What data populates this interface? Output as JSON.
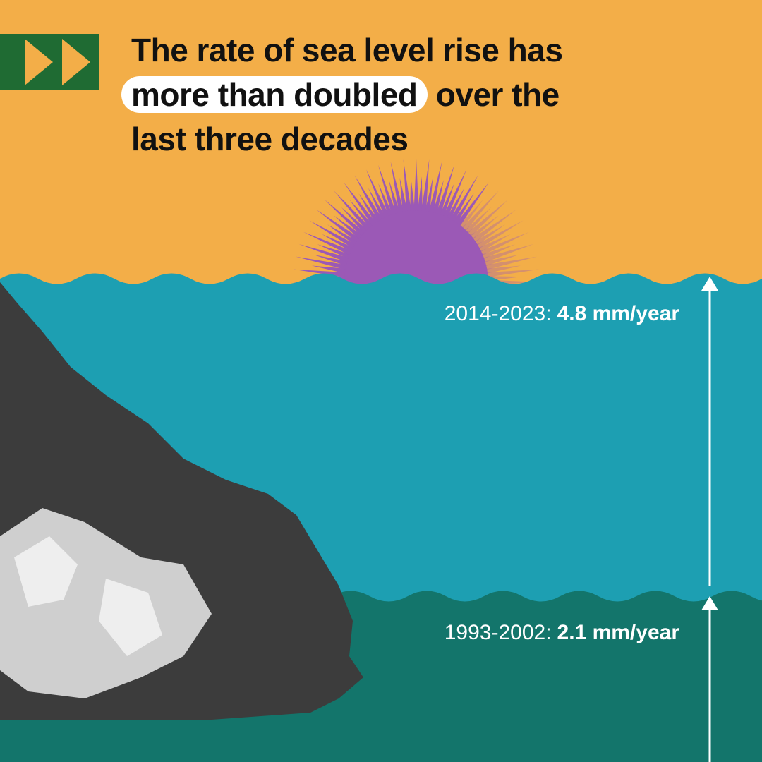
{
  "headline": {
    "line_1": "The rate of sea level rise has",
    "highlight": "more than doubled",
    "line_2": "over the",
    "line_3": "last three decades"
  },
  "levels": [
    {
      "period": "2014-2023:",
      "rate": "4.8 mm/year"
    },
    {
      "period": "1993-2002:",
      "rate": "2.1 mm/year"
    }
  ]
}
